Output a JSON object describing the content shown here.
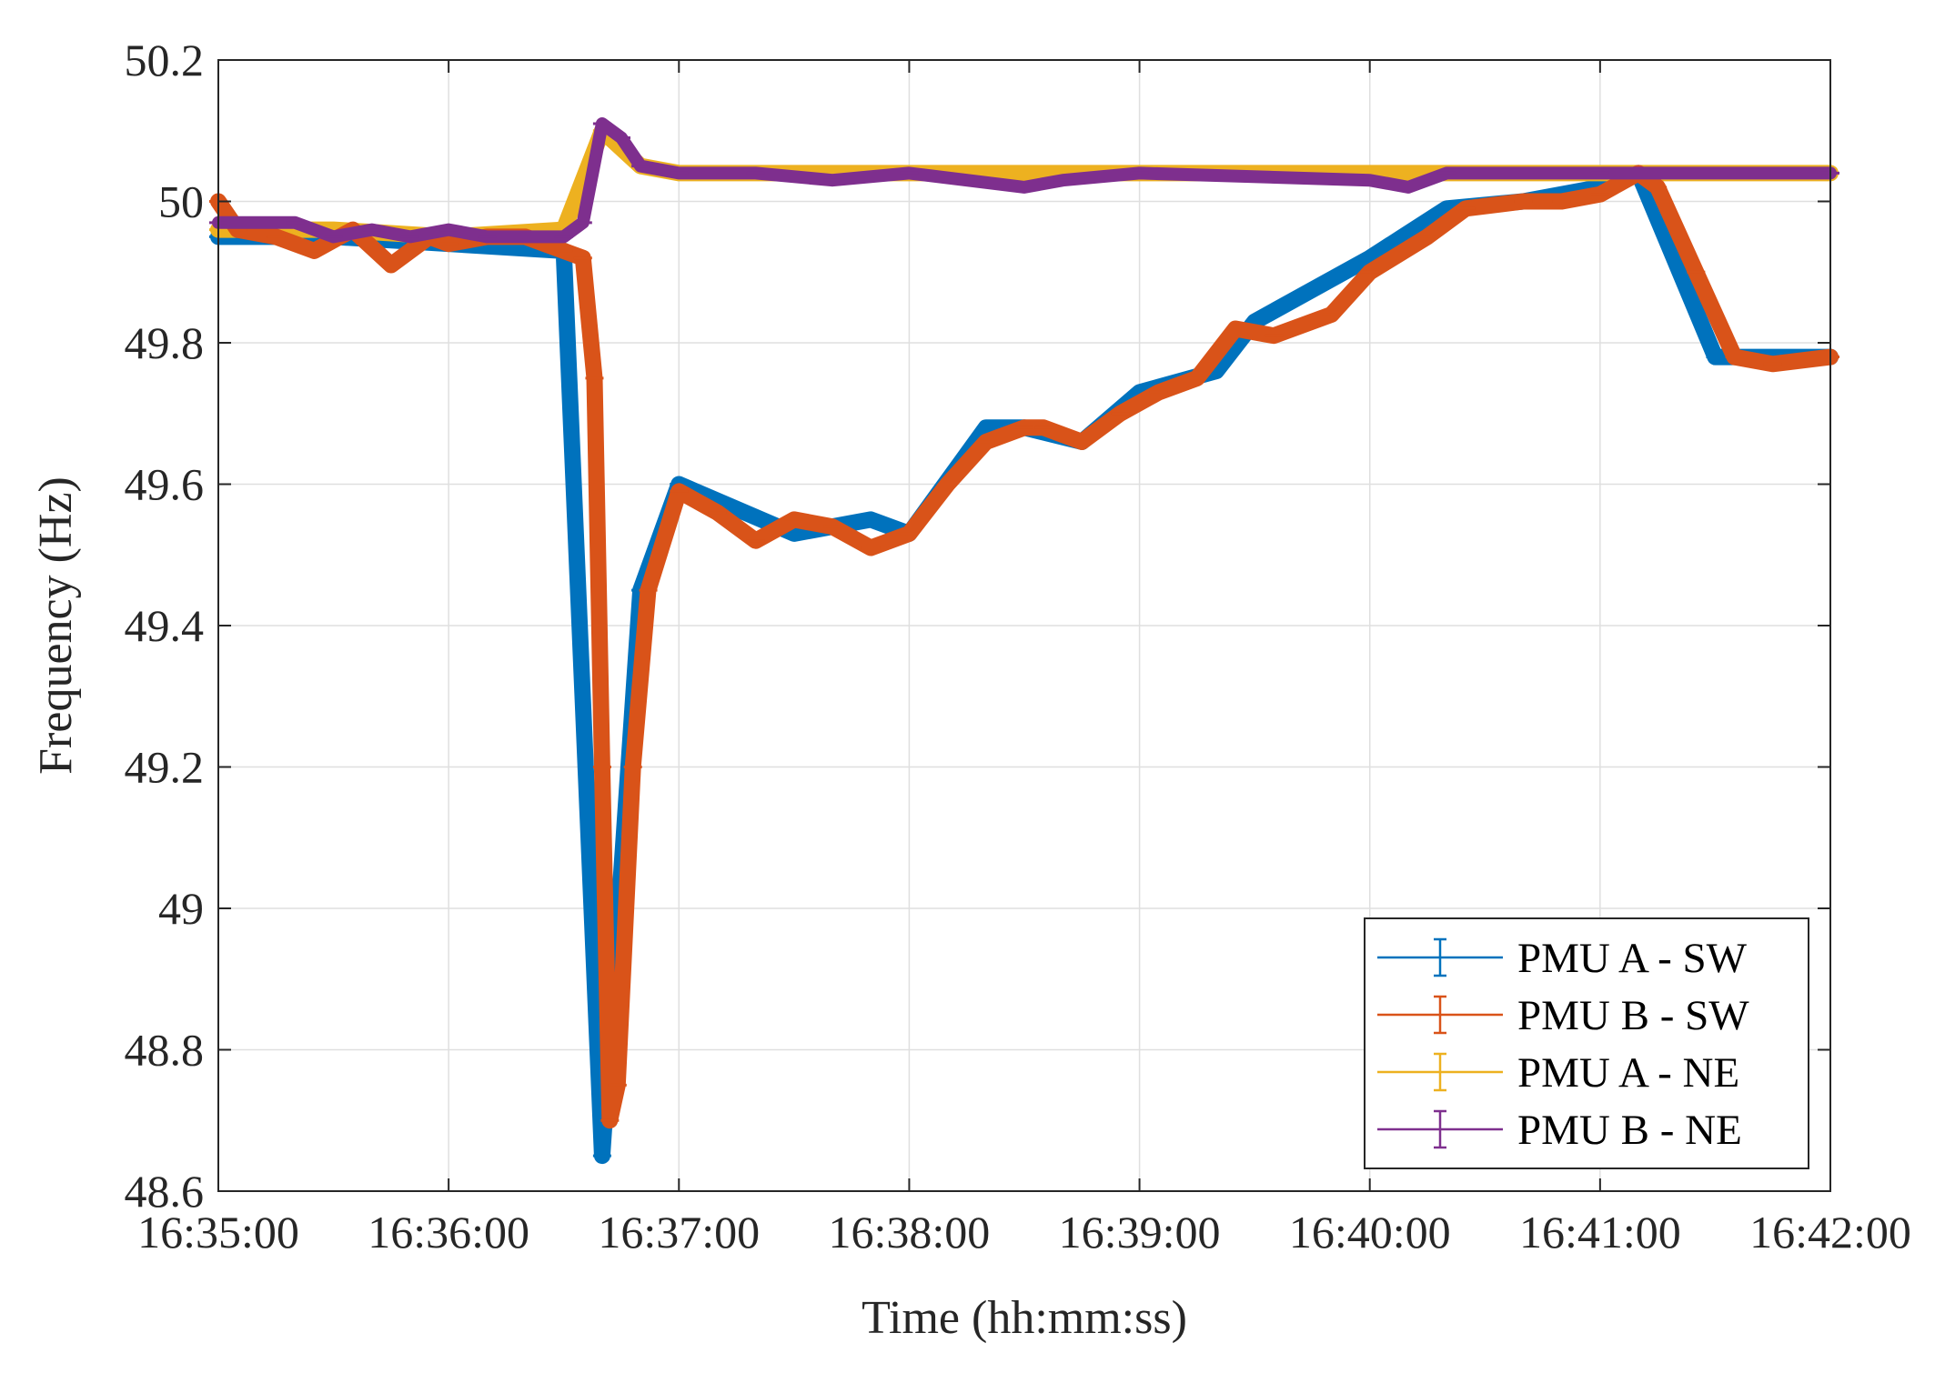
{
  "chart_data": {
    "type": "line",
    "xlabel": "Time (hh:mm:ss)",
    "ylabel": "Frequency (Hz)",
    "x_range": [
      "16:35:00",
      "16:42:00"
    ],
    "ylim": [
      48.6,
      50.2
    ],
    "x_ticks": [
      "16:35:00",
      "16:36:00",
      "16:37:00",
      "16:38:00",
      "16:39:00",
      "16:40:00",
      "16:41:00",
      "16:42:00"
    ],
    "y_ticks": [
      "48.6",
      "48.8",
      "49",
      "49.2",
      "49.4",
      "49.6",
      "49.8",
      "50",
      "50.2"
    ],
    "grid": true,
    "legend_position": "bottom-right",
    "series": [
      {
        "name": "PMU A - SW",
        "color": "#0072BD",
        "points": [
          [
            "16:35:00",
            49.95
          ],
          [
            "16:35:30",
            49.95
          ],
          [
            "16:36:00",
            49.94
          ],
          [
            "16:36:30",
            49.93
          ],
          [
            "16:36:40",
            48.65
          ],
          [
            "16:36:50",
            49.45
          ],
          [
            "16:37:00",
            49.6
          ],
          [
            "16:37:30",
            49.53
          ],
          [
            "16:37:50",
            49.55
          ],
          [
            "16:38:00",
            49.53
          ],
          [
            "16:38:20",
            49.68
          ],
          [
            "16:38:30",
            49.68
          ],
          [
            "16:38:45",
            49.66
          ],
          [
            "16:39:00",
            49.73
          ],
          [
            "16:39:20",
            49.76
          ],
          [
            "16:39:30",
            49.83
          ],
          [
            "16:40:00",
            49.92
          ],
          [
            "16:40:20",
            49.99
          ],
          [
            "16:40:40",
            50.0
          ],
          [
            "16:41:00",
            50.02
          ],
          [
            "16:41:10",
            50.04
          ],
          [
            "16:41:30",
            49.78
          ],
          [
            "16:42:00",
            49.78
          ]
        ]
      },
      {
        "name": "PMU B - SW",
        "color": "#D95319",
        "points": [
          [
            "16:35:00",
            50.0
          ],
          [
            "16:35:05",
            49.96
          ],
          [
            "16:35:15",
            49.95
          ],
          [
            "16:35:25",
            49.93
          ],
          [
            "16:35:35",
            49.96
          ],
          [
            "16:35:45",
            49.91
          ],
          [
            "16:35:55",
            49.95
          ],
          [
            "16:36:00",
            49.94
          ],
          [
            "16:36:10",
            49.95
          ],
          [
            "16:36:20",
            49.95
          ],
          [
            "16:36:30",
            49.93
          ],
          [
            "16:36:35",
            49.92
          ],
          [
            "16:36:38",
            49.75
          ],
          [
            "16:36:40",
            49.2
          ],
          [
            "16:36:42",
            48.7
          ],
          [
            "16:36:44",
            48.75
          ],
          [
            "16:36:48",
            49.2
          ],
          [
            "16:36:52",
            49.45
          ],
          [
            "16:37:00",
            49.59
          ],
          [
            "16:37:10",
            49.56
          ],
          [
            "16:37:20",
            49.52
          ],
          [
            "16:37:30",
            49.55
          ],
          [
            "16:37:40",
            49.54
          ],
          [
            "16:37:50",
            49.51
          ],
          [
            "16:38:00",
            49.53
          ],
          [
            "16:38:10",
            49.6
          ],
          [
            "16:38:20",
            49.66
          ],
          [
            "16:38:30",
            49.68
          ],
          [
            "16:38:35",
            49.68
          ],
          [
            "16:38:45",
            49.66
          ],
          [
            "16:38:55",
            49.7
          ],
          [
            "16:39:05",
            49.73
          ],
          [
            "16:39:15",
            49.75
          ],
          [
            "16:39:25",
            49.82
          ],
          [
            "16:39:35",
            49.81
          ],
          [
            "16:39:50",
            49.84
          ],
          [
            "16:40:00",
            49.9
          ],
          [
            "16:40:15",
            49.95
          ],
          [
            "16:40:25",
            49.99
          ],
          [
            "16:40:40",
            50.0
          ],
          [
            "16:40:50",
            50.0
          ],
          [
            "16:41:00",
            50.01
          ],
          [
            "16:41:10",
            50.04
          ],
          [
            "16:41:15",
            50.02
          ],
          [
            "16:41:25",
            49.9
          ],
          [
            "16:41:35",
            49.78
          ],
          [
            "16:41:45",
            49.77
          ],
          [
            "16:42:00",
            49.78
          ]
        ]
      },
      {
        "name": "PMU A - NE",
        "color": "#EDB120",
        "points": [
          [
            "16:35:00",
            49.96
          ],
          [
            "16:35:30",
            49.96
          ],
          [
            "16:36:00",
            49.95
          ],
          [
            "16:36:30",
            49.96
          ],
          [
            "16:36:40",
            50.1
          ],
          [
            "16:36:50",
            50.05
          ],
          [
            "16:37:00",
            50.04
          ],
          [
            "16:42:00",
            50.04
          ]
        ]
      },
      {
        "name": "PMU B - NE",
        "color": "#7E2F8E",
        "points": [
          [
            "16:35:00",
            49.97
          ],
          [
            "16:35:20",
            49.97
          ],
          [
            "16:35:30",
            49.95
          ],
          [
            "16:35:40",
            49.96
          ],
          [
            "16:35:50",
            49.95
          ],
          [
            "16:36:00",
            49.96
          ],
          [
            "16:36:10",
            49.95
          ],
          [
            "16:36:30",
            49.95
          ],
          [
            "16:36:35",
            49.97
          ],
          [
            "16:36:40",
            50.11
          ],
          [
            "16:36:45",
            50.09
          ],
          [
            "16:36:50",
            50.05
          ],
          [
            "16:37:00",
            50.04
          ],
          [
            "16:37:20",
            50.04
          ],
          [
            "16:37:40",
            50.03
          ],
          [
            "16:38:00",
            50.04
          ],
          [
            "16:38:30",
            50.02
          ],
          [
            "16:38:40",
            50.03
          ],
          [
            "16:39:00",
            50.04
          ],
          [
            "16:40:00",
            50.03
          ],
          [
            "16:40:10",
            50.02
          ],
          [
            "16:40:20",
            50.04
          ],
          [
            "16:41:00",
            50.04
          ],
          [
            "16:42:00",
            50.04
          ]
        ]
      }
    ]
  }
}
